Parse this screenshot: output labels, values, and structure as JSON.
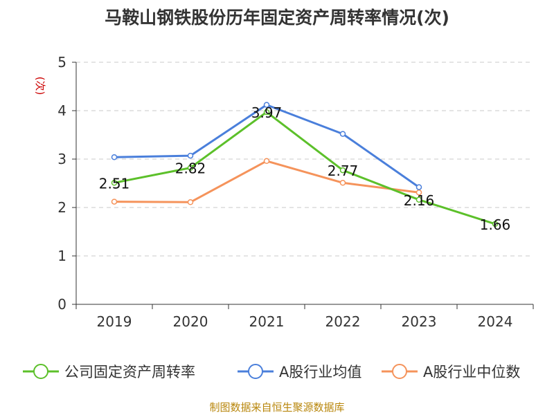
{
  "title": "马鞍山钢铁股份历年固定资产周转率情况(次)",
  "source": "制图数据来自恒生聚源数据库",
  "colors": {
    "company": "#5cc02a",
    "industry_avg": "#4a7fdb",
    "industry_median": "#f5935b",
    "grid": "#c8c8c8",
    "axis": "#333333",
    "unit": "#cc0000"
  },
  "chart_data": {
    "type": "line",
    "title": "马鞍山钢铁股份历年固定资产周转率情况(次)",
    "ylabel": "(次)",
    "xlabel": "",
    "ylim": [
      0,
      5
    ],
    "yticks": [
      0,
      1,
      2,
      3,
      4,
      5
    ],
    "grid": true,
    "legend_position": "bottom",
    "categories": [
      "2019",
      "2020",
      "2021",
      "2022",
      "2023",
      "2024"
    ],
    "series": [
      {
        "name": "公司固定资产周转率",
        "values": [
          2.51,
          2.82,
          3.97,
          2.77,
          2.16,
          1.66
        ],
        "labels": [
          "2.51",
          "2.82",
          "3.97",
          "2.77",
          "2.16",
          "1.66"
        ]
      },
      {
        "name": "A股行业均值",
        "values": [
          3.04,
          3.07,
          4.12,
          3.52,
          2.42,
          null
        ]
      },
      {
        "name": "A股行业中位数",
        "values": [
          2.12,
          2.11,
          2.96,
          2.51,
          2.31,
          null
        ]
      }
    ]
  }
}
